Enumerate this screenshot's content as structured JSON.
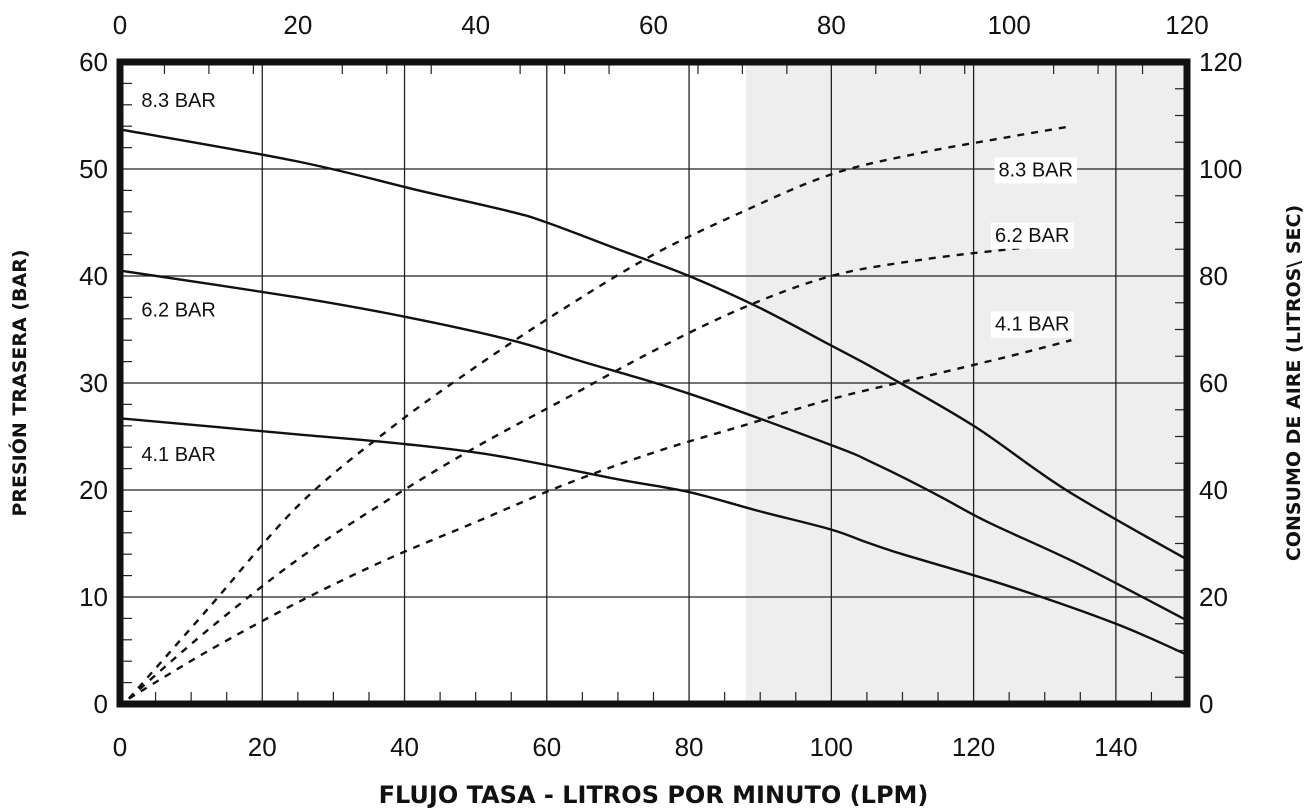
{
  "chart_data": {
    "type": "line",
    "xlabel": "FLUJO TASA -  LITROS POR MINUTO (LPM)",
    "ylabel": "PRESIÓN TRASERA  (BAR)",
    "y2label": "CONSUMO DE AIRE (LITROS\\ SEC)",
    "xlim": [
      0,
      150
    ],
    "ylim": [
      0,
      60
    ],
    "x2lim": [
      0,
      120
    ],
    "y2lim": [
      0,
      120
    ],
    "xticks": [
      "0",
      "20",
      "40",
      "60",
      "80",
      "100",
      "120",
      "140"
    ],
    "yticks": [
      "0",
      "10",
      "20",
      "30",
      "40",
      "50",
      "60"
    ],
    "x2ticks": [
      "0",
      "20",
      "40",
      "60",
      "80",
      "100",
      "120"
    ],
    "y2ticks": [
      "0",
      "20",
      "40",
      "60",
      "80",
      "100",
      "120"
    ],
    "grid": true,
    "shaded_region": {
      "x_from": 88,
      "x_to": 150,
      "color": "#eeeeee"
    },
    "series": [
      {
        "name": "8.3 BAR",
        "axis": "left",
        "style": "solid",
        "x": [
          0,
          25,
          42,
          55,
          60,
          70,
          80,
          90,
          100,
          107,
          120,
          133,
          150
        ],
        "y": [
          53.7,
          50.7,
          48,
          46,
          45,
          42.5,
          40,
          37,
          33.5,
          31,
          26,
          20,
          13.5
        ]
      },
      {
        "name": "6.2 BAR",
        "axis": "left",
        "style": "solid",
        "x": [
          0,
          25,
          40,
          55,
          65,
          80,
          100,
          106,
          115,
          122,
          135,
          150
        ],
        "y": [
          40.5,
          38,
          36.2,
          34,
          32,
          29,
          24.2,
          22.5,
          19.5,
          17,
          13,
          7.8
        ]
      },
      {
        "name": "4.1 BAR",
        "axis": "left",
        "style": "solid",
        "x": [
          0,
          25,
          40,
          53,
          70,
          80,
          90,
          100,
          105,
          110,
          125,
          140,
          150
        ],
        "y": [
          26.7,
          25.2,
          24.3,
          23.2,
          21,
          19.8,
          18,
          16.3,
          15.1,
          14,
          11,
          7.5,
          4.6
        ]
      },
      {
        "name": "8.3 BAR",
        "axis": "right",
        "style": "dashed",
        "x": [
          1,
          10,
          20,
          30,
          40,
          50,
          60,
          70,
          80,
          90,
          100,
          107
        ],
        "y": [
          1,
          18,
          37,
          51,
          63,
          74,
          84,
          92,
          99,
          103,
          106,
          108
        ]
      },
      {
        "name": "6.2 BAR",
        "axis": "right",
        "style": "dashed",
        "x": [
          1,
          10,
          20,
          30,
          40,
          50,
          60,
          70,
          80,
          90,
          100,
          107
        ],
        "y": [
          1,
          14,
          27,
          38,
          48,
          57,
          66,
          74,
          80,
          83,
          85,
          86
        ]
      },
      {
        "name": "4.1 BAR",
        "axis": "right",
        "style": "dashed",
        "x": [
          1,
          10,
          20,
          30,
          40,
          50,
          60,
          70,
          80,
          90,
          100,
          107
        ],
        "y": [
          1,
          10,
          19,
          27,
          34,
          41,
          47,
          52,
          57,
          61,
          65,
          68
        ]
      }
    ],
    "labels": [
      {
        "text": "8.3 BAR",
        "x": 3,
        "y": 55.8,
        "axis": "left"
      },
      {
        "text": "6.2 BAR",
        "x": 3,
        "y": 36.2,
        "axis": "left"
      },
      {
        "text": "4.1 BAR",
        "x": 3,
        "y": 22.7,
        "axis": "left"
      },
      {
        "text": "8.3 BAR",
        "x": 123.5,
        "y": 49.3,
        "axis": "left"
      },
      {
        "text": "6.2 BAR",
        "x": 123,
        "y": 43.2,
        "axis": "left"
      },
      {
        "text": "4.1 BAR",
        "x": 123,
        "y": 34.9,
        "axis": "left"
      }
    ]
  }
}
